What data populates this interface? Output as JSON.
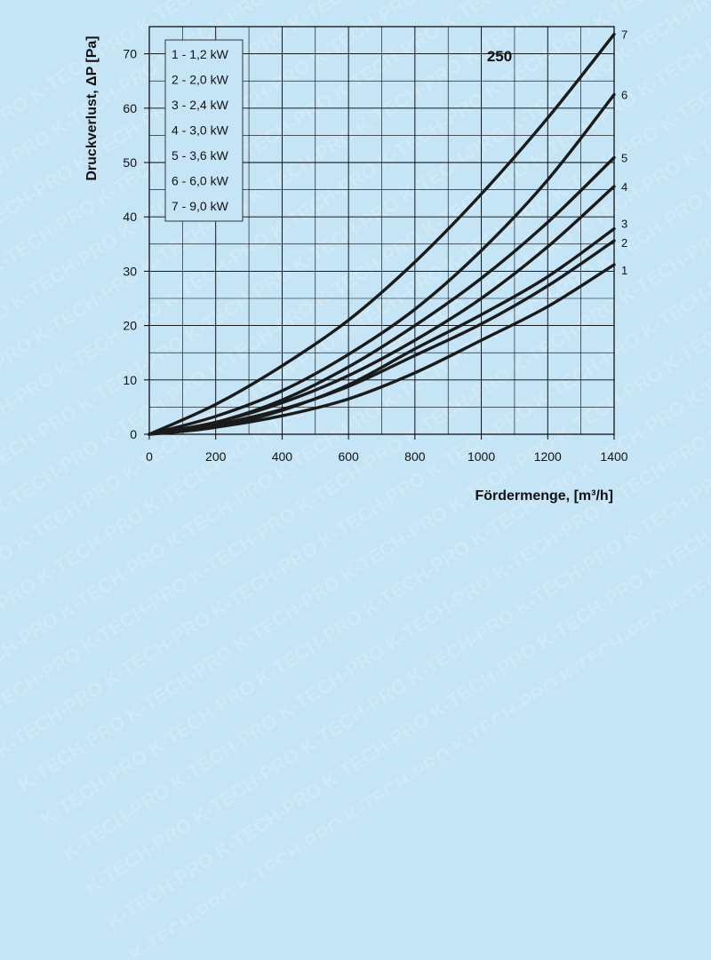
{
  "watermark": "K-TECH-PRO",
  "colors": {
    "background": "#c5e4f5",
    "grid": "#000000",
    "curve": "#1a1a1a"
  },
  "chart_data": {
    "type": "line",
    "title": "250",
    "xlabel": "Fördermenge, [m³/h]",
    "ylabel": "Druckverlust, ΔP [Pa]",
    "xlim": [
      0,
      1400
    ],
    "ylim": [
      0,
      75
    ],
    "x_ticks": [
      0,
      200,
      400,
      600,
      800,
      1000,
      1200,
      1400
    ],
    "y_ticks": [
      0,
      10,
      20,
      30,
      40,
      50,
      60,
      70
    ],
    "grid": true,
    "legend_position": "top-left",
    "legend": [
      "1 - 1,2 kW",
      "2 - 2,0 kW",
      "3 - 2,4 kW",
      "4 - 3,0 kW",
      "5 - 3,6 kW",
      "6 - 6,0 kW",
      "7 - 9,0 kW"
    ],
    "x": [
      0,
      200,
      400,
      600,
      800,
      1000,
      1200,
      1400
    ],
    "series": [
      {
        "name": "1",
        "values": [
          0,
          1.3,
          3.4,
          6.5,
          11.3,
          17.3,
          23.5,
          31.2
        ]
      },
      {
        "name": "2",
        "values": [
          0,
          1.8,
          4.6,
          8.8,
          14.5,
          20.3,
          27.3,
          35.6
        ]
      },
      {
        "name": "3",
        "values": [
          0,
          1.3,
          4.4,
          9.1,
          15.7,
          22.0,
          29.0,
          37.8
        ]
      },
      {
        "name": "4",
        "values": [
          0,
          2.2,
          5.8,
          10.8,
          17.3,
          25.0,
          34.5,
          45.6
        ]
      },
      {
        "name": "5",
        "values": [
          0,
          2.2,
          6.3,
          12.4,
          20.0,
          28.7,
          39.0,
          50.9
        ]
      },
      {
        "name": "6",
        "values": [
          0,
          3.3,
          8.0,
          14.7,
          23.0,
          33.8,
          46.8,
          62.5
        ]
      },
      {
        "name": "7",
        "values": [
          0,
          5.5,
          12.6,
          21.0,
          31.7,
          44.2,
          58.2,
          73.6
        ]
      }
    ]
  }
}
